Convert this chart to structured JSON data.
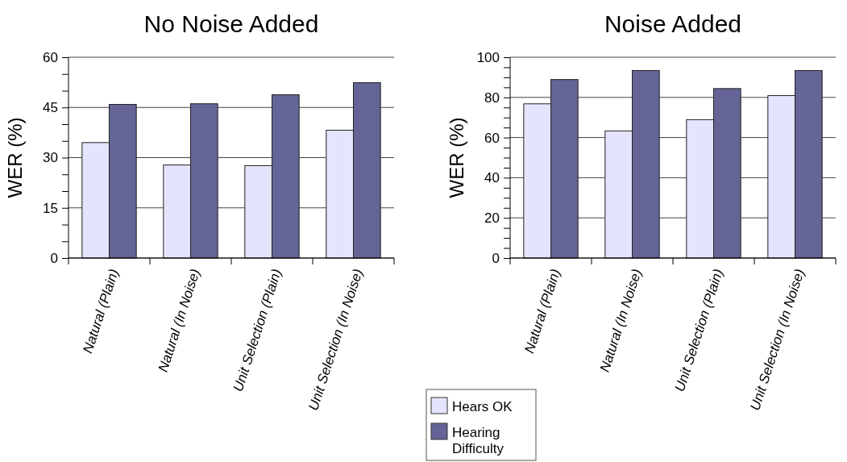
{
  "chart_data": [
    {
      "type": "bar",
      "title": "No Noise Added",
      "ylabel": "WER (%)",
      "categories": [
        "Natural (Plain)",
        "Natural (In Noise)",
        "Unit Selection (Plain)",
        "Unit Selection (In Noise)"
      ],
      "series": [
        {
          "color": "#e4e4fc",
          "values": [
            34.5,
            27.8,
            27.6,
            38.2
          ]
        },
        {
          "color": "#646496",
          "values": [
            45.9,
            46.1,
            48.8,
            52.4
          ]
        }
      ],
      "ylim": [
        0,
        60
      ],
      "yticks": [
        0,
        {
          "value": 5,
          "label": null
        },
        {
          "value": 10,
          "label": null
        },
        15,
        {
          "value": 20,
          "label": null
        },
        {
          "value": 25,
          "label": null
        },
        30,
        {
          "value": 35,
          "label": null
        },
        {
          "value": 40,
          "label": null
        },
        45,
        {
          "value": 50,
          "label": null
        },
        {
          "value": 55,
          "label": null
        },
        60
      ],
      "grid": "y"
    },
    {
      "type": "bar",
      "title": "Noise Added",
      "ylabel": "WER (%)",
      "categories": [
        "Natural (Plain)",
        "Natural (In Noise)",
        "Unit Selection (Plain)",
        "Unit Selection (In Noise)"
      ],
      "series": [
        {
          "name": "Hears OK",
          "color": "#e4e4fc",
          "values": [
            76.8,
            63.3,
            68.9,
            80.9
          ]
        },
        {
          "name": "Hearing Difficulty",
          "color": "#646496",
          "values": [
            88.9,
            93.4,
            84.4,
            93.4
          ]
        }
      ],
      "ylim": [
        0,
        100
      ],
      "yticks": [
        0,
        {
          "value": 5,
          "label": null
        },
        {
          "value": 10,
          "label": null
        },
        {
          "value": 15,
          "label": null
        },
        20,
        {
          "value": 25,
          "label": null
        },
        {
          "value": 30,
          "label": null
        },
        {
          "value": 35,
          "label": null
        },
        40,
        {
          "value": 45,
          "label": null
        },
        {
          "value": 50,
          "label": null
        },
        {
          "value": 55,
          "label": null
        },
        60,
        {
          "value": 65,
          "label": null
        },
        {
          "value": 70,
          "label": null
        },
        {
          "value": 75,
          "label": null
        },
        80,
        {
          "value": 85,
          "label": null
        },
        {
          "value": 90,
          "label": null
        },
        {
          "value": 95,
          "label": null
        },
        100
      ],
      "grid": "y",
      "legend": "bottom left"
    }
  ]
}
